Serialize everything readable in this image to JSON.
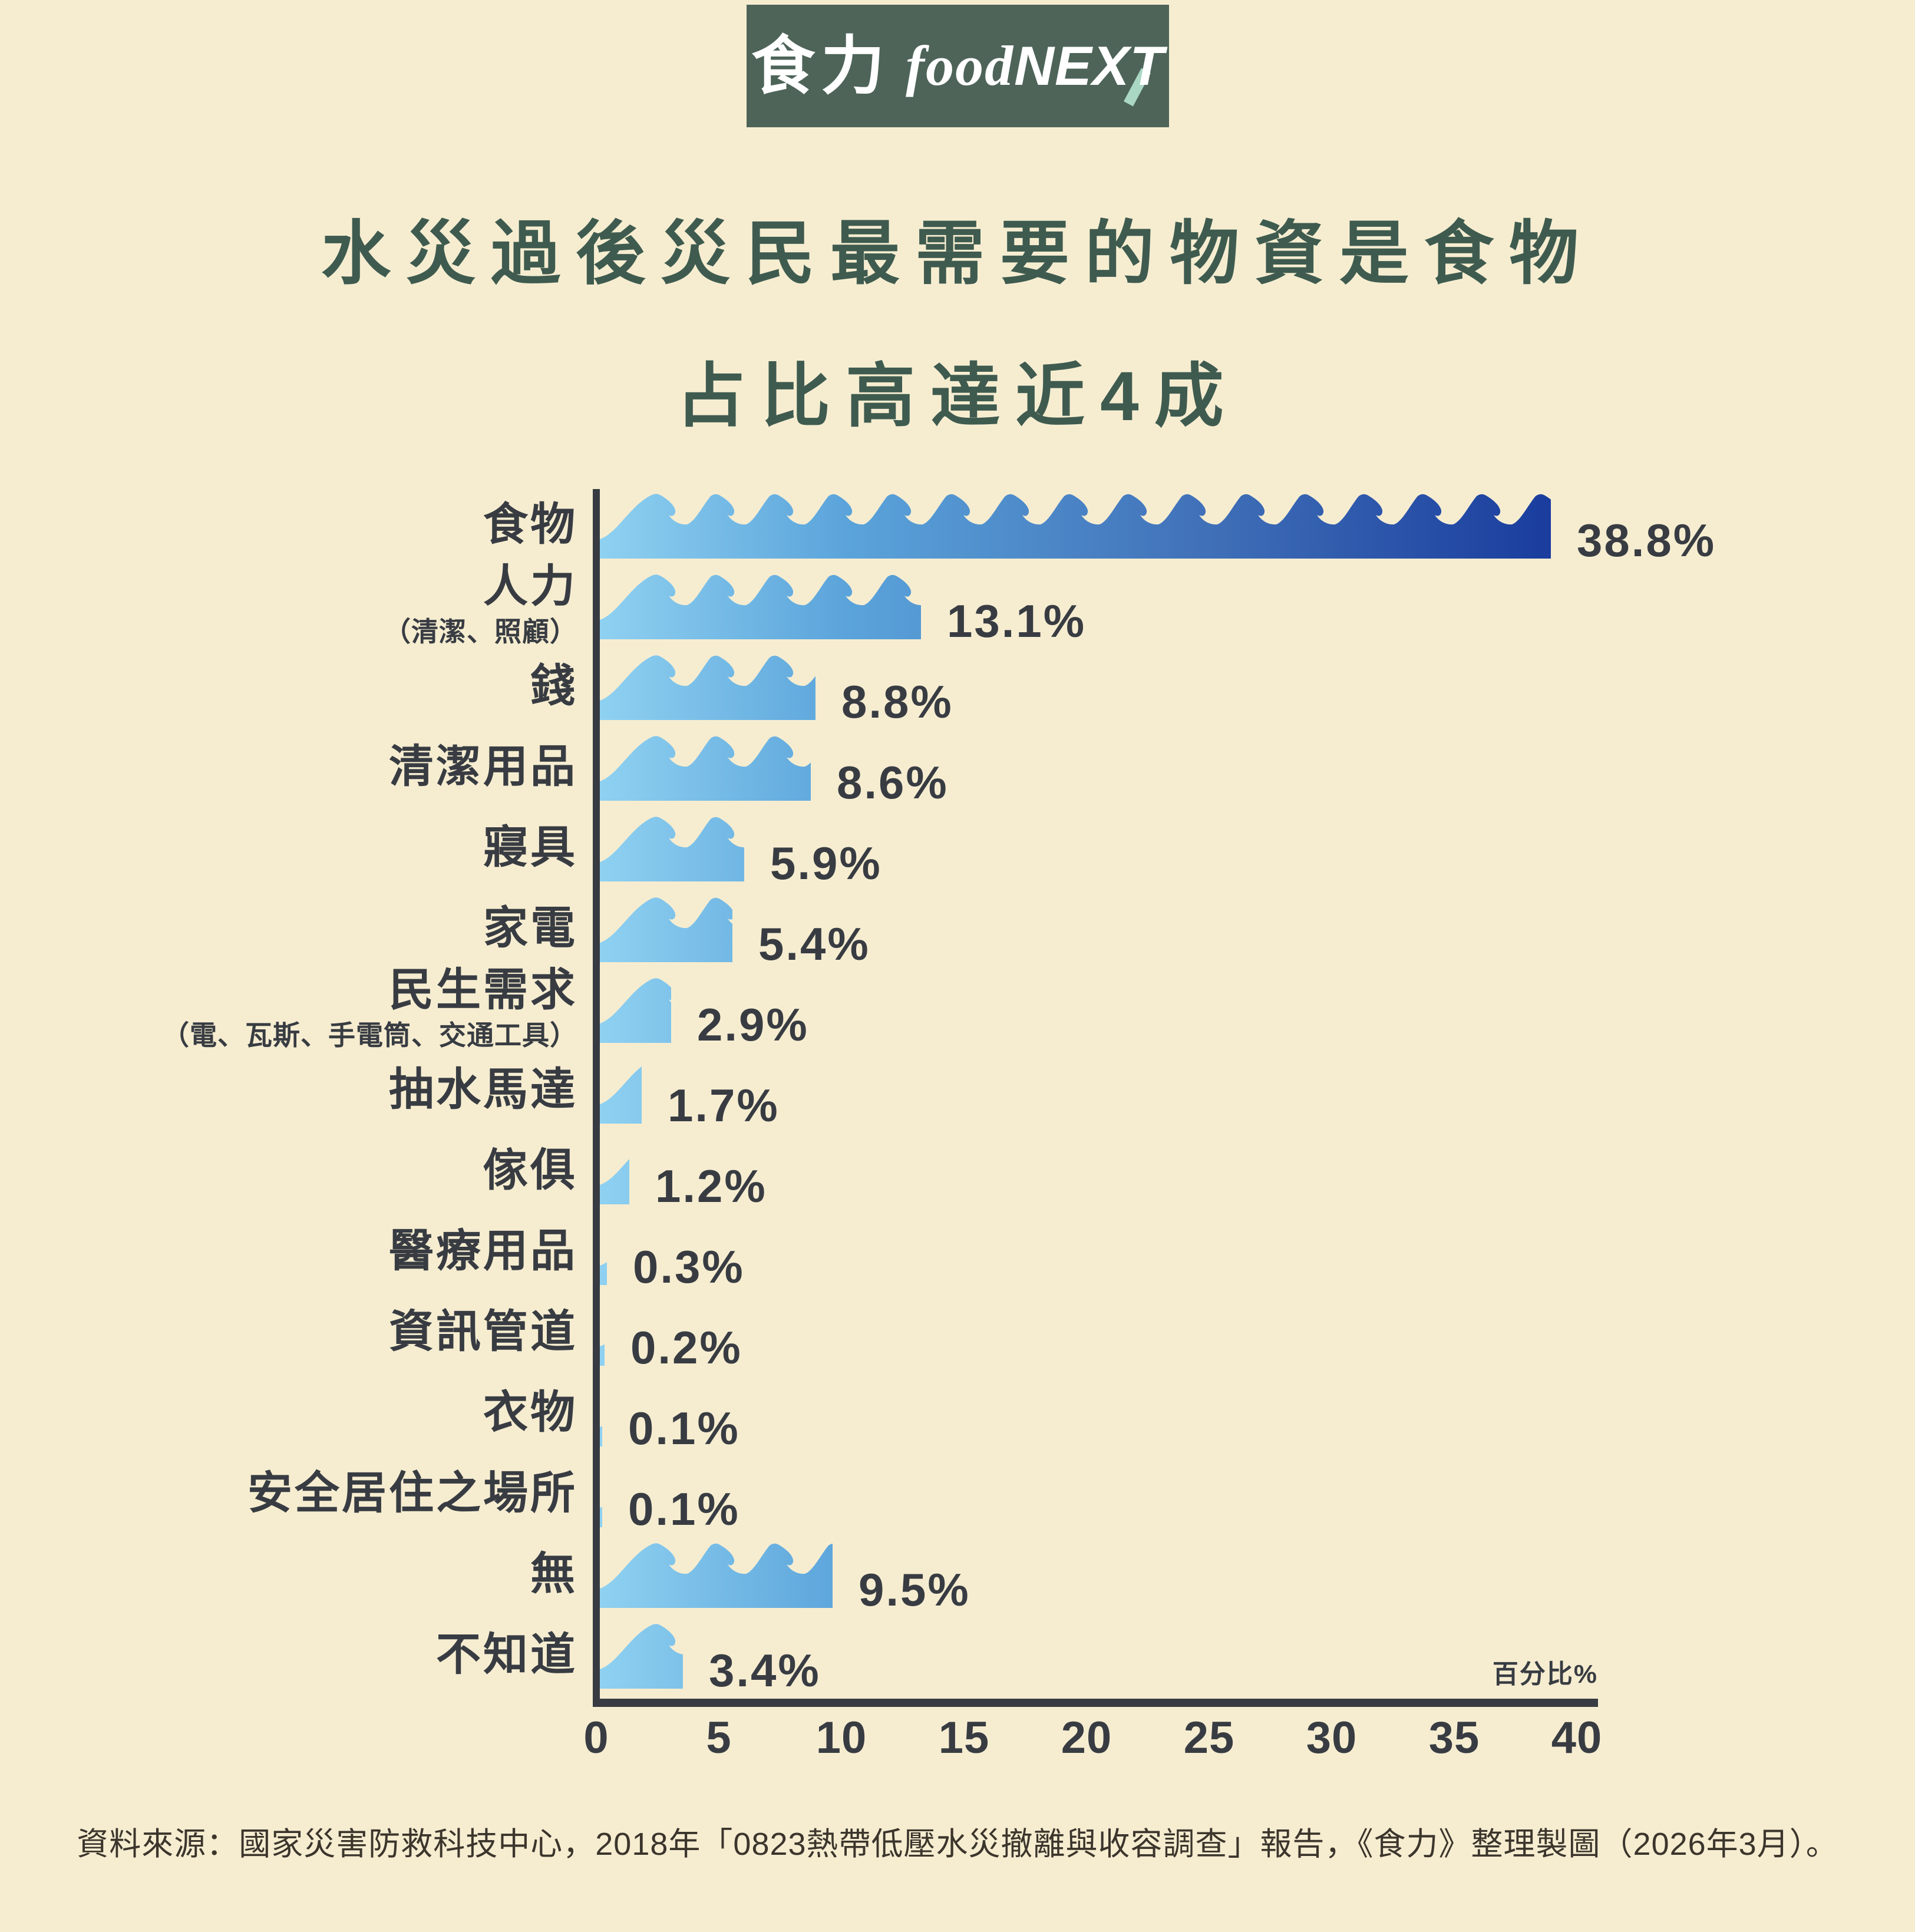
{
  "logo": {
    "zh": "食力",
    "en_script": "food",
    "en_bold": "NEXT"
  },
  "title": {
    "line1": "水災過後災民最需要的物資是食物",
    "line2": "占比高達近4成"
  },
  "chart_data": {
    "type": "bar",
    "orientation": "horizontal",
    "title": "水災過後災民最需要的物資是食物 占比高達近4成",
    "xlabel": "百分比%",
    "xlim": [
      0,
      40
    ],
    "x_ticks": [
      0,
      5,
      10,
      15,
      20,
      25,
      30,
      35,
      40
    ],
    "grid": false,
    "legend": false,
    "categories": [
      "食物",
      "人力",
      "錢",
      "清潔用品",
      "寢具",
      "家電",
      "民生需求",
      "抽水馬達",
      "傢俱",
      "醫療用品",
      "資訊管道",
      "衣物",
      "安全居住之場所",
      "無",
      "不知道"
    ],
    "values": [
      38.8,
      13.1,
      8.8,
      8.6,
      5.9,
      5.4,
      2.9,
      1.7,
      1.2,
      0.3,
      0.2,
      0.1,
      0.1,
      9.5,
      3.4
    ],
    "rows": [
      {
        "label": "食物",
        "sublabel": "",
        "value": 38.8,
        "display": "38.8%"
      },
      {
        "label": "人力",
        "sublabel": "（清潔、照顧）",
        "value": 13.1,
        "display": "13.1%"
      },
      {
        "label": "錢",
        "sublabel": "",
        "value": 8.8,
        "display": "8.8%"
      },
      {
        "label": "清潔用品",
        "sublabel": "",
        "value": 8.6,
        "display": "8.6%"
      },
      {
        "label": "寢具",
        "sublabel": "",
        "value": 5.9,
        "display": "5.9%"
      },
      {
        "label": "家電",
        "sublabel": "",
        "value": 5.4,
        "display": "5.4%"
      },
      {
        "label": "民生需求",
        "sublabel": "（電、瓦斯、手電筒、交通工具）",
        "value": 2.9,
        "display": "2.9%"
      },
      {
        "label": "抽水馬達",
        "sublabel": "",
        "value": 1.7,
        "display": "1.7%"
      },
      {
        "label": "傢俱",
        "sublabel": "",
        "value": 1.2,
        "display": "1.2%"
      },
      {
        "label": "醫療用品",
        "sublabel": "",
        "value": 0.3,
        "display": "0.3%"
      },
      {
        "label": "資訊管道",
        "sublabel": "",
        "value": 0.2,
        "display": "0.2%"
      },
      {
        "label": "衣物",
        "sublabel": "",
        "value": 0.1,
        "display": "0.1%"
      },
      {
        "label": "安全居住之場所",
        "sublabel": "",
        "value": 0.1,
        "display": "0.1%"
      },
      {
        "label": "無",
        "sublabel": "",
        "value": 9.5,
        "display": "9.5%"
      },
      {
        "label": "不知道",
        "sublabel": "",
        "value": 3.4,
        "display": "3.4%"
      }
    ]
  },
  "source": {
    "text": "資料來源：國家災害防救科技中心，2018年「0823熱帶低壓水災撤離與收容調查」報告，《食力》整理製圖（2026年3月）。"
  },
  "colors": {
    "background": "#F6EDD1",
    "title": "#3F5B4F",
    "ink": "#383C42",
    "source_text": "#3B352C",
    "logo_background": "#4E6459",
    "logo_accent": "#A9D7C4",
    "bar_gradient": [
      "#8FD1F1",
      "#5BA4DB",
      "#4070B8",
      "#16389B"
    ],
    "bar_gradient_offsets": [
      0,
      0.25,
      0.62,
      1
    ]
  }
}
